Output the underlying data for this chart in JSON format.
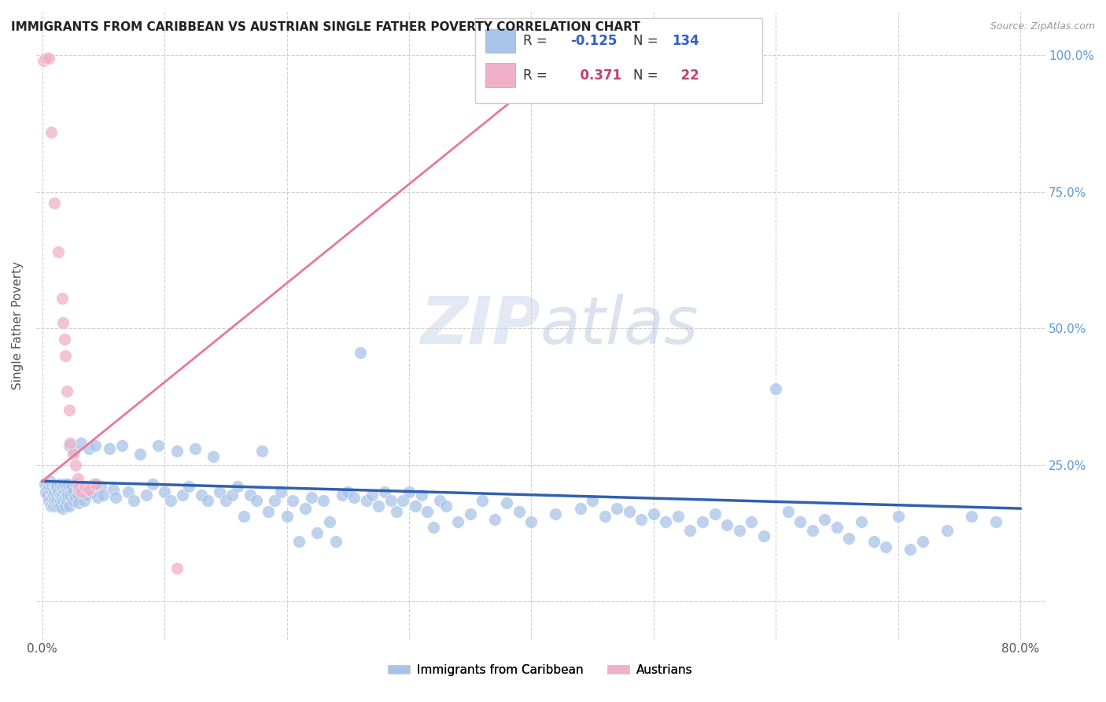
{
  "title": "IMMIGRANTS FROM CARIBBEAN VS AUSTRIAN SINGLE FATHER POVERTY CORRELATION CHART",
  "source": "Source: ZipAtlas.com",
  "ylabel": "Single Father Poverty",
  "x_ticks": [
    0.0,
    0.1,
    0.2,
    0.3,
    0.4,
    0.5,
    0.6,
    0.7,
    0.8
  ],
  "y_ticks": [
    0.0,
    0.25,
    0.5,
    0.75,
    1.0
  ],
  "y_tick_labels": [
    "",
    "25.0%",
    "50.0%",
    "75.0%",
    "100.0%"
  ],
  "watermark": "ZIPatlas",
  "blue_color": "#a8c4e8",
  "pink_color": "#f0b0c8",
  "blue_line_color": "#3060b0",
  "pink_line_color": "#e87898",
  "blue_scatter": [
    [
      0.002,
      0.215
    ],
    [
      0.003,
      0.2
    ],
    [
      0.004,
      0.195
    ],
    [
      0.005,
      0.21
    ],
    [
      0.005,
      0.185
    ],
    [
      0.006,
      0.22
    ],
    [
      0.007,
      0.2
    ],
    [
      0.007,
      0.175
    ],
    [
      0.008,
      0.21
    ],
    [
      0.008,
      0.19
    ],
    [
      0.009,
      0.195
    ],
    [
      0.009,
      0.175
    ],
    [
      0.01,
      0.215
    ],
    [
      0.01,
      0.2
    ],
    [
      0.01,
      0.185
    ],
    [
      0.011,
      0.21
    ],
    [
      0.011,
      0.175
    ],
    [
      0.012,
      0.195
    ],
    [
      0.012,
      0.21
    ],
    [
      0.012,
      0.185
    ],
    [
      0.013,
      0.175
    ],
    [
      0.013,
      0.2
    ],
    [
      0.014,
      0.215
    ],
    [
      0.014,
      0.185
    ],
    [
      0.015,
      0.195
    ],
    [
      0.015,
      0.175
    ],
    [
      0.016,
      0.21
    ],
    [
      0.016,
      0.195
    ],
    [
      0.017,
      0.185
    ],
    [
      0.017,
      0.17
    ],
    [
      0.018,
      0.2
    ],
    [
      0.018,
      0.215
    ],
    [
      0.019,
      0.19
    ],
    [
      0.019,
      0.175
    ],
    [
      0.02,
      0.2
    ],
    [
      0.02,
      0.185
    ],
    [
      0.021,
      0.215
    ],
    [
      0.021,
      0.195
    ],
    [
      0.022,
      0.175
    ],
    [
      0.022,
      0.285
    ],
    [
      0.023,
      0.195
    ],
    [
      0.024,
      0.21
    ],
    [
      0.025,
      0.185
    ],
    [
      0.025,
      0.2
    ],
    [
      0.026,
      0.275
    ],
    [
      0.027,
      0.19
    ],
    [
      0.028,
      0.215
    ],
    [
      0.029,
      0.195
    ],
    [
      0.03,
      0.205
    ],
    [
      0.03,
      0.18
    ],
    [
      0.032,
      0.29
    ],
    [
      0.033,
      0.2
    ],
    [
      0.034,
      0.185
    ],
    [
      0.035,
      0.21
    ],
    [
      0.036,
      0.195
    ],
    [
      0.038,
      0.28
    ],
    [
      0.04,
      0.2
    ],
    [
      0.042,
      0.215
    ],
    [
      0.043,
      0.285
    ],
    [
      0.045,
      0.19
    ],
    [
      0.048,
      0.21
    ],
    [
      0.05,
      0.195
    ],
    [
      0.055,
      0.28
    ],
    [
      0.058,
      0.205
    ],
    [
      0.06,
      0.19
    ],
    [
      0.065,
      0.285
    ],
    [
      0.07,
      0.2
    ],
    [
      0.075,
      0.185
    ],
    [
      0.08,
      0.27
    ],
    [
      0.085,
      0.195
    ],
    [
      0.09,
      0.215
    ],
    [
      0.095,
      0.285
    ],
    [
      0.1,
      0.2
    ],
    [
      0.105,
      0.185
    ],
    [
      0.11,
      0.275
    ],
    [
      0.115,
      0.195
    ],
    [
      0.12,
      0.21
    ],
    [
      0.125,
      0.28
    ],
    [
      0.13,
      0.195
    ],
    [
      0.135,
      0.185
    ],
    [
      0.14,
      0.265
    ],
    [
      0.145,
      0.2
    ],
    [
      0.15,
      0.185
    ],
    [
      0.155,
      0.195
    ],
    [
      0.16,
      0.21
    ],
    [
      0.165,
      0.155
    ],
    [
      0.17,
      0.195
    ],
    [
      0.175,
      0.185
    ],
    [
      0.18,
      0.275
    ],
    [
      0.185,
      0.165
    ],
    [
      0.19,
      0.185
    ],
    [
      0.195,
      0.2
    ],
    [
      0.2,
      0.155
    ],
    [
      0.205,
      0.185
    ],
    [
      0.21,
      0.11
    ],
    [
      0.215,
      0.17
    ],
    [
      0.22,
      0.19
    ],
    [
      0.225,
      0.125
    ],
    [
      0.23,
      0.185
    ],
    [
      0.235,
      0.145
    ],
    [
      0.24,
      0.11
    ],
    [
      0.245,
      0.195
    ],
    [
      0.25,
      0.2
    ],
    [
      0.255,
      0.19
    ],
    [
      0.26,
      0.455
    ],
    [
      0.265,
      0.185
    ],
    [
      0.27,
      0.195
    ],
    [
      0.275,
      0.175
    ],
    [
      0.28,
      0.2
    ],
    [
      0.285,
      0.185
    ],
    [
      0.29,
      0.165
    ],
    [
      0.295,
      0.185
    ],
    [
      0.3,
      0.2
    ],
    [
      0.305,
      0.175
    ],
    [
      0.31,
      0.195
    ],
    [
      0.315,
      0.165
    ],
    [
      0.32,
      0.135
    ],
    [
      0.325,
      0.185
    ],
    [
      0.33,
      0.175
    ],
    [
      0.34,
      0.145
    ],
    [
      0.35,
      0.16
    ],
    [
      0.36,
      0.185
    ],
    [
      0.37,
      0.15
    ],
    [
      0.38,
      0.18
    ],
    [
      0.39,
      0.165
    ],
    [
      0.4,
      0.145
    ],
    [
      0.42,
      0.16
    ],
    [
      0.44,
      0.17
    ],
    [
      0.45,
      0.185
    ],
    [
      0.46,
      0.155
    ],
    [
      0.47,
      0.17
    ],
    [
      0.48,
      0.165
    ],
    [
      0.49,
      0.15
    ],
    [
      0.5,
      0.16
    ],
    [
      0.51,
      0.145
    ],
    [
      0.52,
      0.155
    ],
    [
      0.53,
      0.13
    ],
    [
      0.54,
      0.145
    ],
    [
      0.55,
      0.16
    ],
    [
      0.56,
      0.14
    ],
    [
      0.57,
      0.13
    ],
    [
      0.58,
      0.145
    ],
    [
      0.59,
      0.12
    ],
    [
      0.6,
      0.39
    ],
    [
      0.61,
      0.165
    ],
    [
      0.62,
      0.145
    ],
    [
      0.63,
      0.13
    ],
    [
      0.64,
      0.15
    ],
    [
      0.65,
      0.135
    ],
    [
      0.66,
      0.115
    ],
    [
      0.67,
      0.145
    ],
    [
      0.68,
      0.11
    ],
    [
      0.69,
      0.1
    ],
    [
      0.7,
      0.155
    ],
    [
      0.71,
      0.095
    ],
    [
      0.72,
      0.11
    ],
    [
      0.74,
      0.13
    ],
    [
      0.76,
      0.155
    ],
    [
      0.78,
      0.145
    ]
  ],
  "pink_scatter": [
    [
      0.001,
      0.99
    ],
    [
      0.003,
      0.995
    ],
    [
      0.005,
      0.995
    ],
    [
      0.007,
      0.86
    ],
    [
      0.01,
      0.73
    ],
    [
      0.013,
      0.64
    ],
    [
      0.016,
      0.555
    ],
    [
      0.017,
      0.51
    ],
    [
      0.018,
      0.48
    ],
    [
      0.019,
      0.45
    ],
    [
      0.02,
      0.385
    ],
    [
      0.022,
      0.35
    ],
    [
      0.023,
      0.29
    ],
    [
      0.025,
      0.27
    ],
    [
      0.027,
      0.25
    ],
    [
      0.029,
      0.225
    ],
    [
      0.03,
      0.21
    ],
    [
      0.032,
      0.2
    ],
    [
      0.035,
      0.21
    ],
    [
      0.038,
      0.205
    ],
    [
      0.044,
      0.215
    ],
    [
      0.11,
      0.06
    ]
  ],
  "blue_trend_x": [
    0.0,
    0.8
  ],
  "blue_trend_y": [
    0.22,
    0.17
  ],
  "pink_trend_x": [
    0.0,
    0.43
  ],
  "pink_trend_y": [
    0.22,
    1.0
  ],
  "xlim": [
    -0.005,
    0.82
  ],
  "ylim": [
    -0.07,
    1.08
  ]
}
